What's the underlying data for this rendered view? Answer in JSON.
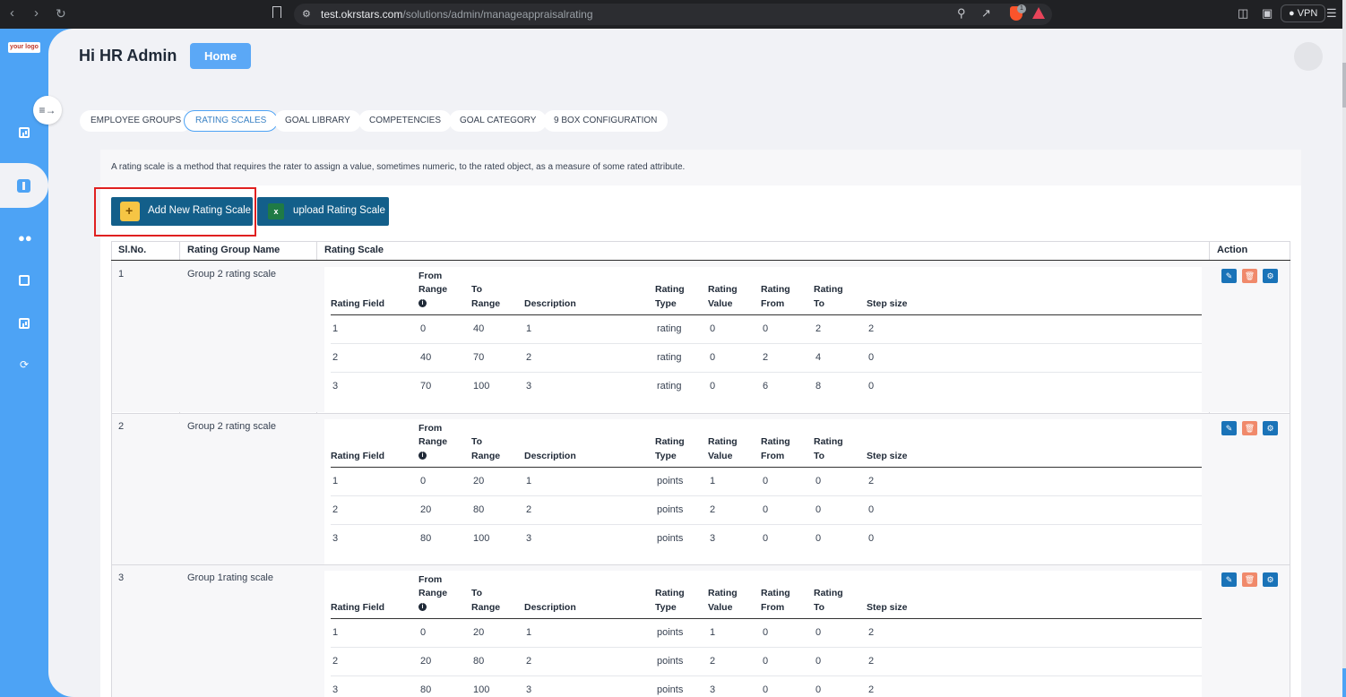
{
  "browser": {
    "url_host": "test.okrstars.com",
    "url_path": "/solutions/admin/manageappraisalrating",
    "vpn_label": "VPN",
    "shield_badge": "1"
  },
  "app": {
    "logo_text": "your logo",
    "greeting": "Hi HR Admin",
    "home_label": "Home"
  },
  "tabs": [
    {
      "label": "EMPLOYEE GROUPS"
    },
    {
      "label": "RATING SCALES"
    },
    {
      "label": "GOAL LIBRARY"
    },
    {
      "label": "COMPETENCIES"
    },
    {
      "label": "GOAL CATEGORY"
    },
    {
      "label": "9 BOX CONFIGURATION"
    }
  ],
  "description": "A rating scale is a method that requires the rater to assign a value, sometimes numeric, to the rated object, as a measure of some rated attribute.",
  "buttons": {
    "add_new": "Add New Rating Scale",
    "upload": "upload Rating Scale"
  },
  "outer_headers": {
    "slno": "Sl.No.",
    "group_name": "Rating Group Name",
    "scale": "Rating Scale",
    "action": "Action"
  },
  "inner_headers": {
    "field": "Rating Field",
    "from_range": "From Range",
    "to_range": "To Range",
    "description": "Description",
    "type": "Rating Type",
    "value": "Rating Value",
    "from": "Rating From",
    "to": "Rating To",
    "step": "Step size"
  },
  "groups": [
    {
      "slno": "1",
      "name": "Group 2 rating scale",
      "rows": [
        [
          "1",
          "0",
          "40",
          "1",
          "rating",
          "0",
          "0",
          "2",
          "2"
        ],
        [
          "2",
          "40",
          "70",
          "2",
          "rating",
          "0",
          "2",
          "4",
          "0"
        ],
        [
          "3",
          "70",
          "100",
          "3",
          "rating",
          "0",
          "6",
          "8",
          "0"
        ]
      ]
    },
    {
      "slno": "2",
      "name": "Group 2 rating scale",
      "rows": [
        [
          "1",
          "0",
          "20",
          "1",
          "points",
          "1",
          "0",
          "0",
          "2"
        ],
        [
          "2",
          "20",
          "80",
          "2",
          "points",
          "2",
          "0",
          "0",
          "0"
        ],
        [
          "3",
          "80",
          "100",
          "3",
          "points",
          "3",
          "0",
          "0",
          "0"
        ]
      ]
    },
    {
      "slno": "3",
      "name": "Group 1rating scale",
      "rows": [
        [
          "1",
          "0",
          "20",
          "1",
          "points",
          "1",
          "0",
          "0",
          "2"
        ],
        [
          "2",
          "20",
          "80",
          "2",
          "points",
          "2",
          "0",
          "0",
          "2"
        ],
        [
          "3",
          "80",
          "100",
          "3",
          "points",
          "3",
          "0",
          "0",
          "2"
        ]
      ]
    }
  ],
  "colors": {
    "sidebar": "#4da3f5",
    "primary_button": "#135f8a",
    "highlight": "#e02020"
  }
}
